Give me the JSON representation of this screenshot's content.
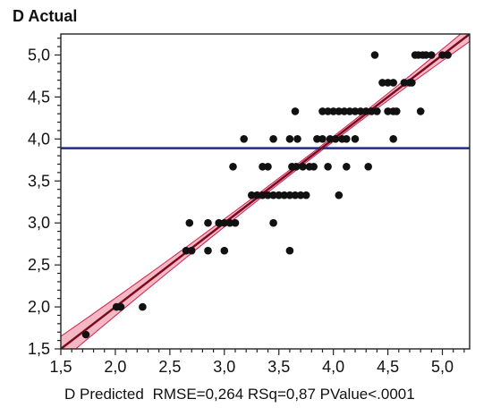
{
  "chart_data": {
    "type": "scatter",
    "title": "",
    "ylabel": "D Actual",
    "xlabel": "D Predicted",
    "stats_text": "RMSE=0,264 RSq=0,87 PValue<.0001",
    "xlim": [
      1.5,
      5.25
    ],
    "ylim": [
      1.5,
      5.25
    ],
    "x_ticks": [
      "1,5",
      "2,0",
      "2,5",
      "3,0",
      "3,5",
      "4,0",
      "4,5",
      "5,0"
    ],
    "y_ticks": [
      "1,5",
      "2,0",
      "2,5",
      "3,0",
      "3,5",
      "4,0",
      "4,5",
      "5,0"
    ],
    "mean_line_y": 3.89,
    "fit_line": {
      "intercept": 0.0,
      "slope": 1.0
    },
    "confidence_band": {
      "start_halfwidth": 0.15,
      "center_halfwidth": 0.03,
      "end_halfwidth": 0.09
    },
    "colors": {
      "fit_line": "#7a0a1e",
      "confidence_band": "#f0a0b0",
      "confidence_band_edge": "#d02050",
      "mean_line": "#1f2a8c",
      "points": "#111111"
    },
    "points": [
      [
        1.73,
        1.67
      ],
      [
        2.01,
        2.0
      ],
      [
        2.05,
        2.0
      ],
      [
        2.25,
        2.0
      ],
      [
        2.65,
        2.67
      ],
      [
        2.7,
        2.67
      ],
      [
        2.85,
        2.67
      ],
      [
        3.0,
        2.67
      ],
      [
        2.68,
        3.0
      ],
      [
        2.85,
        3.0
      ],
      [
        2.95,
        3.0
      ],
      [
        3.0,
        3.0
      ],
      [
        3.05,
        3.0
      ],
      [
        3.1,
        3.0
      ],
      [
        3.45,
        3.0
      ],
      [
        3.08,
        3.67
      ],
      [
        3.18,
        4.0
      ],
      [
        3.6,
        2.67
      ],
      [
        3.25,
        3.33
      ],
      [
        3.3,
        3.33
      ],
      [
        3.35,
        3.33
      ],
      [
        3.4,
        3.33
      ],
      [
        3.45,
        3.33
      ],
      [
        3.5,
        3.33
      ],
      [
        3.55,
        3.33
      ],
      [
        3.6,
        3.33
      ],
      [
        3.65,
        3.33
      ],
      [
        3.7,
        3.33
      ],
      [
        3.75,
        3.33
      ],
      [
        4.05,
        3.33
      ],
      [
        3.35,
        3.67
      ],
      [
        3.4,
        3.67
      ],
      [
        3.62,
        3.67
      ],
      [
        3.66,
        3.67
      ],
      [
        3.72,
        3.67
      ],
      [
        3.78,
        3.67
      ],
      [
        3.82,
        3.67
      ],
      [
        3.95,
        3.67
      ],
      [
        4.12,
        3.67
      ],
      [
        4.32,
        3.67
      ],
      [
        3.45,
        4.0
      ],
      [
        3.6,
        4.0
      ],
      [
        3.67,
        4.0
      ],
      [
        3.85,
        4.0
      ],
      [
        3.9,
        4.0
      ],
      [
        3.97,
        4.0
      ],
      [
        4.02,
        4.0
      ],
      [
        4.08,
        4.0
      ],
      [
        4.12,
        4.0
      ],
      [
        4.2,
        4.0
      ],
      [
        4.55,
        4.0
      ],
      [
        3.65,
        4.33
      ],
      [
        3.9,
        4.33
      ],
      [
        3.95,
        4.33
      ],
      [
        4.0,
        4.33
      ],
      [
        4.05,
        4.33
      ],
      [
        4.1,
        4.33
      ],
      [
        4.15,
        4.33
      ],
      [
        4.2,
        4.33
      ],
      [
        4.25,
        4.33
      ],
      [
        4.3,
        4.33
      ],
      [
        4.35,
        4.33
      ],
      [
        4.4,
        4.33
      ],
      [
        4.5,
        4.33
      ],
      [
        4.55,
        4.33
      ],
      [
        4.58,
        4.33
      ],
      [
        4.8,
        4.33
      ],
      [
        4.45,
        4.67
      ],
      [
        4.5,
        4.67
      ],
      [
        4.55,
        4.67
      ],
      [
        4.65,
        4.67
      ],
      [
        4.7,
        4.67
      ],
      [
        4.72,
        4.67
      ],
      [
        4.38,
        5.0
      ],
      [
        4.75,
        5.0
      ],
      [
        4.78,
        5.0
      ],
      [
        4.82,
        5.0
      ],
      [
        4.85,
        5.0
      ],
      [
        4.9,
        5.0
      ],
      [
        5.0,
        5.0
      ],
      [
        5.05,
        5.0
      ]
    ]
  }
}
